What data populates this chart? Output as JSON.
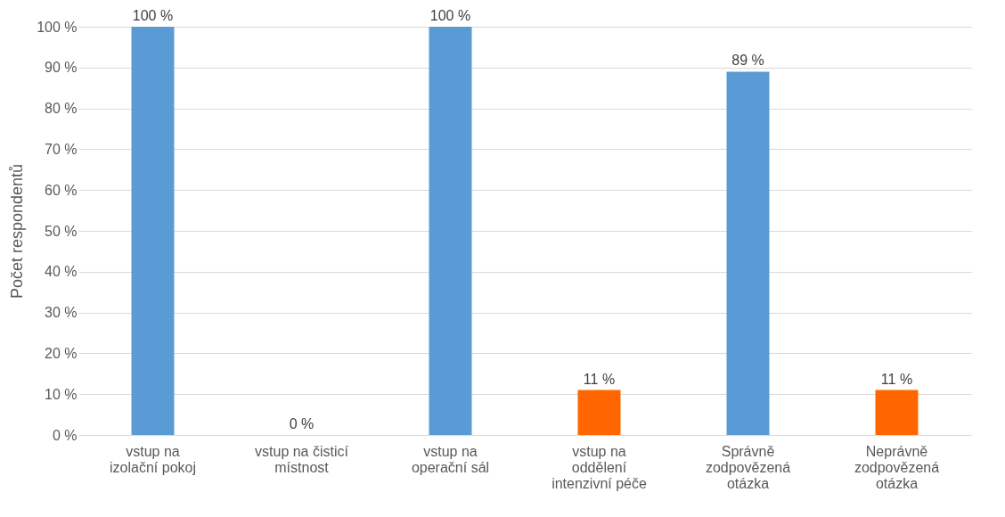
{
  "chart_data": {
    "type": "bar",
    "ylabel": "Počet respondentů",
    "categories": [
      "vstup na izolační pokoj",
      "vstup na čisticí místnost",
      "vstup na operační sál",
      "vstup na oddělení intenzivní péče",
      "Správně zodpovězená otázka",
      "Neprávně zodpovězená otázka"
    ],
    "values": [
      100,
      0,
      100,
      11,
      89,
      11
    ],
    "colors": [
      "#5b9bd5",
      "#5b9bd5",
      "#5b9bd5",
      "#ff6600",
      "#5b9bd5",
      "#ff6600"
    ],
    "value_labels": [
      "100 %",
      "0 %",
      "100 %",
      "11 %",
      "89 %",
      "11 %"
    ],
    "ylim": [
      0,
      100
    ],
    "yticks": [
      {
        "value": 0,
        "label": "0 %"
      },
      {
        "value": 10,
        "label": "10 %"
      },
      {
        "value": 20,
        "label": "20 %"
      },
      {
        "value": 30,
        "label": "30 %"
      },
      {
        "value": 40,
        "label": "40 %"
      },
      {
        "value": 50,
        "label": "50 %"
      },
      {
        "value": 60,
        "label": "60 %"
      },
      {
        "value": 70,
        "label": "70 %"
      },
      {
        "value": 80,
        "label": "80 %"
      },
      {
        "value": 90,
        "label": "90 %"
      },
      {
        "value": 100,
        "label": "100 %"
      }
    ],
    "grid": "y"
  }
}
